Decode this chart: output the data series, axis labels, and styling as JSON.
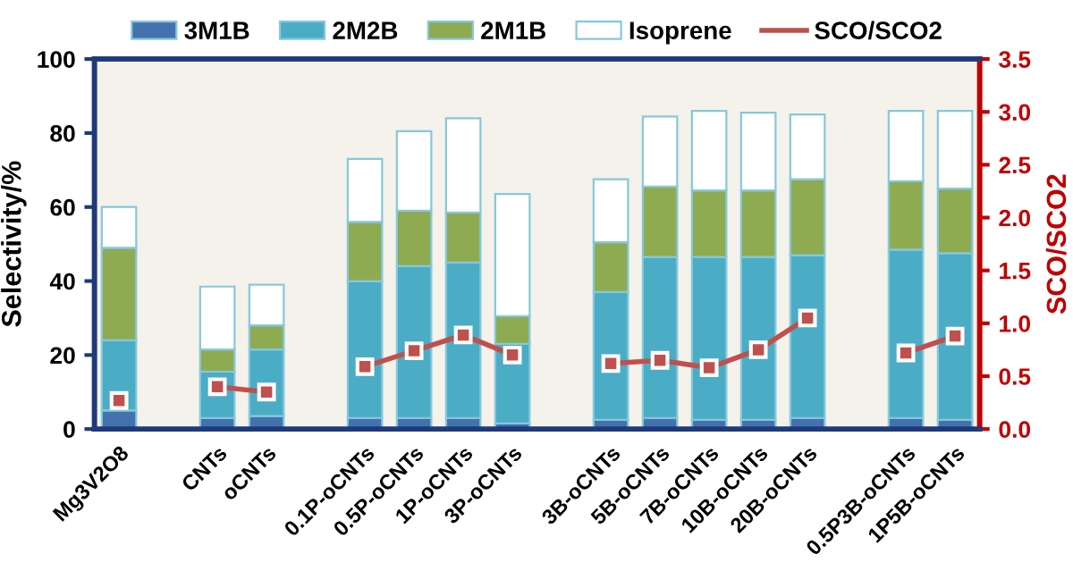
{
  "chart_data": {
    "type": "bar",
    "stacked": true,
    "legend": "top",
    "ylabel": "Selectivity/%",
    "y2label": "SCO/SCO2",
    "categories": [
      "Mg3V2O8",
      null,
      "CNTs",
      "oCNTs",
      null,
      "0.1P-oCNTs",
      "0.5P-oCNTs",
      "1P-oCNTs",
      "3P-oCNTs",
      null,
      "3B-oCNTs",
      "5B-oCNTs",
      "7B-oCNTs",
      "10B-oCNTs",
      "20B-oCNTs",
      null,
      "0.5P3B-oCNTs",
      "1P5B-oCNTs"
    ],
    "ylim": [
      0,
      100
    ],
    "yticks": [
      0,
      20,
      40,
      60,
      80,
      100
    ],
    "y2lim": [
      0,
      3.5
    ],
    "y2ticks": [
      {
        "value": 0,
        "label": "0.0"
      },
      {
        "value": 0.5,
        "label": "0.5"
      },
      {
        "value": 1,
        "label": "1.0"
      },
      {
        "value": 1.5,
        "label": "1.5"
      },
      {
        "value": 2,
        "label": "2.0"
      },
      {
        "value": 2.5,
        "label": "2.5"
      },
      {
        "value": 3,
        "label": "3.0"
      },
      {
        "value": 3.5,
        "label": "3.5"
      }
    ],
    "series": [
      {
        "name": "3M1B",
        "color": "#4472ae",
        "values": [
          5,
          null,
          3,
          3.5,
          null,
          3,
          3,
          3,
          1.5,
          null,
          2.5,
          3,
          2.5,
          2.5,
          3,
          null,
          3,
          2.5
        ]
      },
      {
        "name": "2M2B",
        "color": "#4bacc6",
        "values": [
          19,
          null,
          12.5,
          18,
          null,
          37,
          41,
          42,
          21.5,
          null,
          34.5,
          43.5,
          44,
          44,
          44,
          null,
          45.5,
          45
        ]
      },
      {
        "name": "2M1B",
        "color": "#8fab52",
        "values": [
          25,
          null,
          6,
          6.5,
          null,
          16,
          15,
          13.5,
          7.5,
          null,
          13.5,
          19,
          18,
          18,
          20.5,
          null,
          18.5,
          17.5
        ]
      },
      {
        "name": "Isoprene",
        "color": "#ffffff",
        "values": [
          11,
          null,
          17,
          11,
          null,
          17,
          21.5,
          25.5,
          33,
          null,
          17,
          19,
          21.5,
          21,
          17.5,
          null,
          19,
          21
        ]
      },
      {
        "name": "SCO/SCO2",
        "type": "line",
        "axis": "y2",
        "color": "#c0504d",
        "marker": "square",
        "line_style": "solid",
        "values": [
          0.27,
          null,
          0.4,
          0.35,
          null,
          0.59,
          0.74,
          0.89,
          0.7,
          null,
          0.62,
          0.65,
          0.58,
          0.75,
          1.05,
          null,
          0.72,
          0.88
        ]
      }
    ]
  }
}
